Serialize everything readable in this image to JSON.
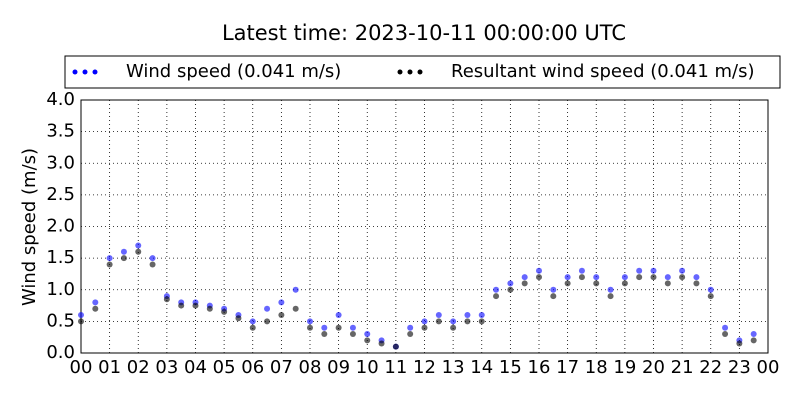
{
  "chart_data": {
    "type": "scatter",
    "title": "Latest time: 2023-10-11 00:00:00 UTC",
    "ylabel": "Wind speed (m/s)",
    "x": [
      0,
      0.5,
      1,
      1.5,
      2,
      2.5,
      3,
      3.5,
      4,
      4.5,
      5,
      5.5,
      6,
      6.5,
      7,
      7.5,
      8,
      8.5,
      9,
      9.5,
      10,
      10.5,
      11,
      11.5,
      12,
      12.5,
      13,
      13.5,
      14,
      14.5,
      15,
      15.5,
      16,
      16.5,
      17,
      17.5,
      18,
      18.5,
      19,
      19.5,
      20,
      20.5,
      21,
      21.5,
      22,
      22.5,
      23,
      23.5
    ],
    "series": [
      {
        "name": "Wind speed (0.041 m/s)",
        "color": "#0000ff",
        "values": [
          0.6,
          0.8,
          1.5,
          1.6,
          1.7,
          1.5,
          0.9,
          0.8,
          0.8,
          0.75,
          0.7,
          0.6,
          0.5,
          0.7,
          0.8,
          1.0,
          0.5,
          0.4,
          0.6,
          0.4,
          0.3,
          0.2,
          0.1,
          0.4,
          0.5,
          0.6,
          0.5,
          0.6,
          0.6,
          1.0,
          1.1,
          1.2,
          1.3,
          1.0,
          1.2,
          1.3,
          1.2,
          1.0,
          1.2,
          1.3,
          1.3,
          1.2,
          1.3,
          1.2,
          1.0,
          0.4,
          0.2,
          0.3
        ]
      },
      {
        "name": "Resultant wind speed (0.041 m/s)",
        "color": "#000000",
        "values": [
          0.5,
          0.7,
          1.4,
          1.5,
          1.6,
          1.4,
          0.85,
          0.75,
          0.75,
          0.7,
          0.65,
          0.55,
          0.4,
          0.5,
          0.6,
          0.7,
          0.4,
          0.3,
          0.4,
          0.3,
          0.2,
          0.15,
          0.1,
          0.3,
          0.4,
          0.5,
          0.4,
          0.5,
          0.5,
          0.9,
          1.0,
          1.1,
          1.2,
          0.9,
          1.1,
          1.2,
          1.1,
          0.9,
          1.1,
          1.2,
          1.2,
          1.1,
          1.2,
          1.1,
          0.9,
          0.3,
          0.15,
          0.2
        ]
      }
    ],
    "xlim": [
      0,
      24
    ],
    "xticks": [
      {
        "value": 0,
        "label": "00"
      },
      {
        "value": 1,
        "label": "01"
      },
      {
        "value": 2,
        "label": "02"
      },
      {
        "value": 3,
        "label": "03"
      },
      {
        "value": 4,
        "label": "04"
      },
      {
        "value": 5,
        "label": "05"
      },
      {
        "value": 6,
        "label": "06"
      },
      {
        "value": 7,
        "label": "07"
      },
      {
        "value": 8,
        "label": "08"
      },
      {
        "value": 9,
        "label": "09"
      },
      {
        "value": 10,
        "label": "10"
      },
      {
        "value": 11,
        "label": "11"
      },
      {
        "value": 12,
        "label": "12"
      },
      {
        "value": 13,
        "label": "13"
      },
      {
        "value": 14,
        "label": "14"
      },
      {
        "value": 15,
        "label": "15"
      },
      {
        "value": 16,
        "label": "16"
      },
      {
        "value": 17,
        "label": "17"
      },
      {
        "value": 18,
        "label": "18"
      },
      {
        "value": 19,
        "label": "19"
      },
      {
        "value": 20,
        "label": "20"
      },
      {
        "value": 21,
        "label": "21"
      },
      {
        "value": 22,
        "label": "22"
      },
      {
        "value": 23,
        "label": "23"
      },
      {
        "value": 24,
        "label": "00"
      }
    ],
    "ylim": [
      0,
      4
    ],
    "yticks": [
      {
        "value": 0,
        "label": "0.0"
      },
      {
        "value": 0.5,
        "label": "0.5"
      },
      {
        "value": 1,
        "label": "1.0"
      },
      {
        "value": 1.5,
        "label": "1.5"
      },
      {
        "value": 2,
        "label": "2.0"
      },
      {
        "value": 2.5,
        "label": "2.5"
      },
      {
        "value": 3,
        "label": "3.0"
      },
      {
        "value": 3.5,
        "label": "3.5"
      },
      {
        "value": 4,
        "label": "4.0"
      }
    ],
    "grid": true
  }
}
